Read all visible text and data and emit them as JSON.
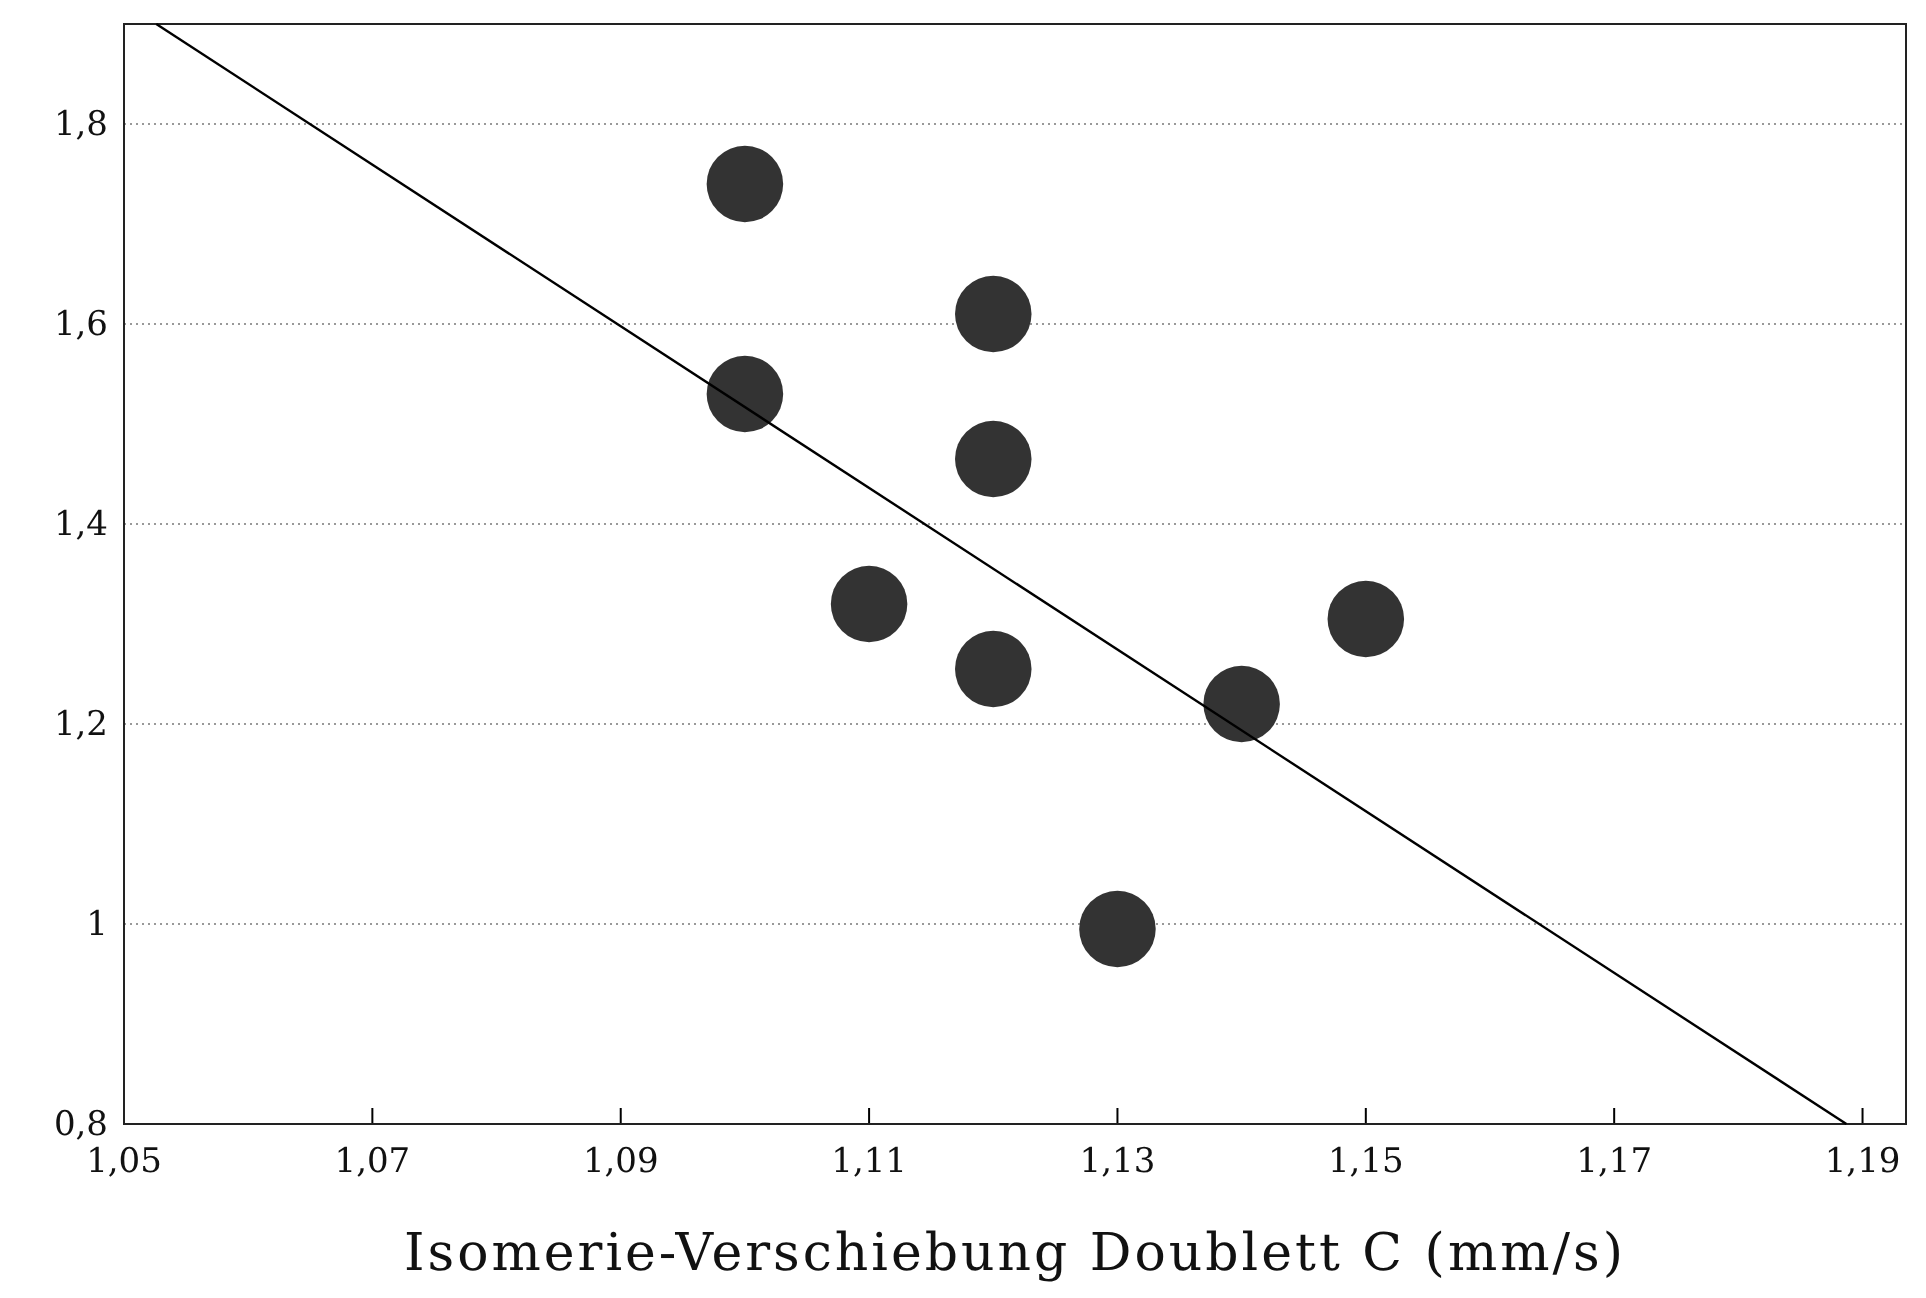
{
  "chart_data": {
    "type": "scatter",
    "xlabel": "Isomerie-Verschiebung Doublett C (mm/s)",
    "xlim": [
      1.05,
      1.1935
    ],
    "ylim": [
      0.8,
      1.9
    ],
    "xticks": [
      {
        "value": 1.05,
        "label": "1,05"
      },
      {
        "value": 1.07,
        "label": "1,07"
      },
      {
        "value": 1.09,
        "label": "1,09"
      },
      {
        "value": 1.11,
        "label": "1,11"
      },
      {
        "value": 1.13,
        "label": "1,13"
      },
      {
        "value": 1.15,
        "label": "1,15"
      },
      {
        "value": 1.17,
        "label": "1,17"
      },
      {
        "value": 1.19,
        "label": "1,19"
      }
    ],
    "yticks": [
      {
        "value": 0.8,
        "label": "0,8"
      },
      1,
      {
        "value": 1.2,
        "label": "1,2"
      },
      {
        "value": 1.4,
        "label": "1,4"
      },
      {
        "value": 1.6,
        "label": "1,6"
      },
      {
        "value": 1.8,
        "label": "1,8"
      }
    ],
    "grid": "y",
    "series": [
      {
        "marker": "circle",
        "color": "#333333",
        "x": [
          1.1,
          1.12,
          1.1,
          1.12,
          1.11,
          1.12,
          1.14,
          1.15,
          1.13
        ],
        "values": [
          1.74,
          1.61,
          1.53,
          1.465,
          1.32,
          1.255,
          1.22,
          1.305,
          0.995
        ]
      },
      {
        "type": "line",
        "color": "#000000",
        "x": [
          1.0526,
          1.1887
        ],
        "values": [
          1.9,
          0.8
        ]
      }
    ]
  }
}
